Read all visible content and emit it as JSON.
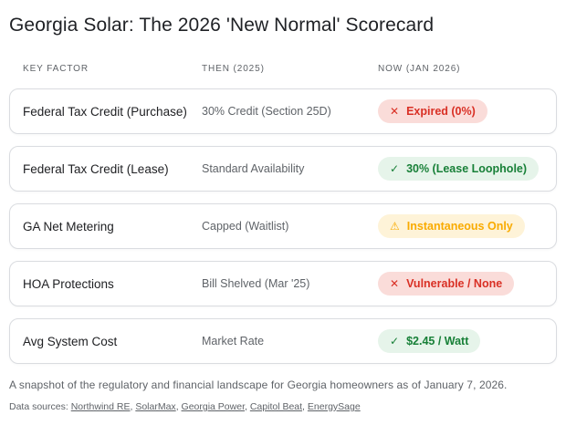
{
  "title": "Georgia Solar: The 2026 'New Normal' Scorecard",
  "columns": {
    "factor": "KEY FACTOR",
    "then": "THEN (2025)",
    "now": "NOW (JAN 2026)"
  },
  "rows": [
    {
      "factor": "Federal Tax Credit (Purchase)",
      "then": "30% Credit (Section 25D)",
      "status": {
        "label": "Expired (0%)",
        "icon": "✕",
        "type": "red"
      }
    },
    {
      "factor": "Federal Tax Credit (Lease)",
      "then": "Standard Availability",
      "status": {
        "label": "30% (Lease Loophole)",
        "icon": "✓",
        "type": "green"
      }
    },
    {
      "factor": "GA Net Metering",
      "then": "Capped (Waitlist)",
      "status": {
        "label": "Instantaneous Only",
        "icon": "⚠",
        "type": "yellow"
      }
    },
    {
      "factor": "HOA Protections",
      "then": "Bill Shelved (Mar '25)",
      "status": {
        "label": "Vulnerable / None",
        "icon": "✕",
        "type": "red"
      }
    },
    {
      "factor": "Avg System Cost",
      "then": "Market Rate",
      "status": {
        "label": "$2.45 / Watt",
        "icon": "✓",
        "type": "green"
      }
    }
  ],
  "footer": {
    "snapshot": "A snapshot of the regulatory and financial landscape for Georgia homeowners as of January 7, 2026.",
    "sources_prefix": "Data sources:",
    "sources": [
      "Northwind RE",
      "SolarMax",
      "Georgia Power",
      "Capitol Beat",
      "EnergySage"
    ]
  },
  "colors": {
    "negative_text": "#d93025",
    "negative_bg": "#fadcd9",
    "positive_text": "#188038",
    "positive_bg": "#e6f4ea",
    "warning_text": "#f9ab00",
    "warning_bg": "#fef3d8",
    "card_border": "#dadce0",
    "muted_text": "#5f6368",
    "title_text": "#1f2125"
  }
}
